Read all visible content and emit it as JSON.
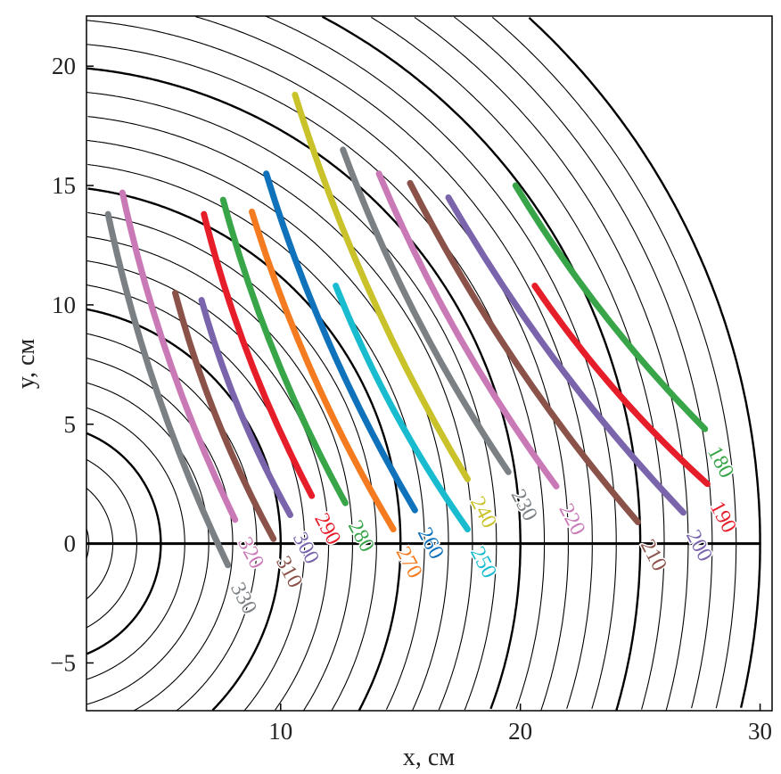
{
  "chart_data": {
    "type": "line",
    "title": "",
    "xlabel": "x, см",
    "ylabel": "y, см",
    "xlim": [
      1.9,
      30.5
    ],
    "ylim": [
      -7.0,
      22.1
    ],
    "xticks": [
      10,
      20,
      30
    ],
    "yticks": [
      -5,
      0,
      5,
      10,
      15,
      20
    ],
    "xtick_labels": [
      "10",
      "20",
      "30"
    ],
    "ytick_labels": [
      "−5",
      "0",
      "5",
      "10",
      "15",
      "20"
    ],
    "grid": false,
    "background_circles": {
      "center": [
        0,
        0
      ],
      "radius_step": 1,
      "max_radius": 30,
      "thick_every": 5
    },
    "series": [
      {
        "name": "330",
        "color": "#7a8084",
        "start": [
          2.8,
          13.8
        ],
        "end": [
          7.8,
          -0.9
        ]
      },
      {
        "name": "320",
        "color": "#c979b6",
        "start": [
          3.4,
          14.7
        ],
        "end": [
          8.1,
          1.0
        ]
      },
      {
        "name": "310",
        "color": "#8a5249",
        "start": [
          5.6,
          10.5
        ],
        "end": [
          9.7,
          0.2
        ]
      },
      {
        "name": "300",
        "color": "#7a65ad",
        "start": [
          6.7,
          10.2
        ],
        "end": [
          10.4,
          1.2
        ]
      },
      {
        "name": "290",
        "color": "#e61e2a",
        "start": [
          6.8,
          13.8
        ],
        "end": [
          11.3,
          2.0
        ]
      },
      {
        "name": "280",
        "color": "#38a548",
        "start": [
          7.6,
          14.4
        ],
        "end": [
          12.7,
          1.7
        ]
      },
      {
        "name": "270",
        "color": "#f47b20",
        "start": [
          8.8,
          13.9
        ],
        "end": [
          14.7,
          0.6
        ]
      },
      {
        "name": "260",
        "color": "#0f72ba",
        "start": [
          9.4,
          15.5
        ],
        "end": [
          15.6,
          1.4
        ]
      },
      {
        "name": "250",
        "color": "#19bccf",
        "start": [
          12.3,
          10.8
        ],
        "end": [
          17.8,
          0.6
        ]
      },
      {
        "name": "240",
        "color": "#c9c22a",
        "start": [
          10.6,
          18.8
        ],
        "end": [
          17.8,
          2.7
        ]
      },
      {
        "name": "230",
        "color": "#7a8084",
        "start": [
          12.6,
          16.5
        ],
        "end": [
          19.5,
          3.0
        ]
      },
      {
        "name": "220",
        "color": "#c979b6",
        "start": [
          14.1,
          15.5
        ],
        "end": [
          21.5,
          2.4
        ]
      },
      {
        "name": "210",
        "color": "#8a5249",
        "start": [
          15.4,
          15.1
        ],
        "end": [
          24.9,
          0.9
        ]
      },
      {
        "name": "200",
        "color": "#7a65ad",
        "start": [
          17.0,
          14.5
        ],
        "end": [
          26.8,
          1.3
        ]
      },
      {
        "name": "190",
        "color": "#e61e2a",
        "start": [
          20.6,
          10.8
        ],
        "end": [
          27.8,
          2.5
        ]
      },
      {
        "name": "180",
        "color": "#38a548",
        "start": [
          19.8,
          15.0
        ],
        "end": [
          27.7,
          4.8
        ]
      }
    ]
  }
}
